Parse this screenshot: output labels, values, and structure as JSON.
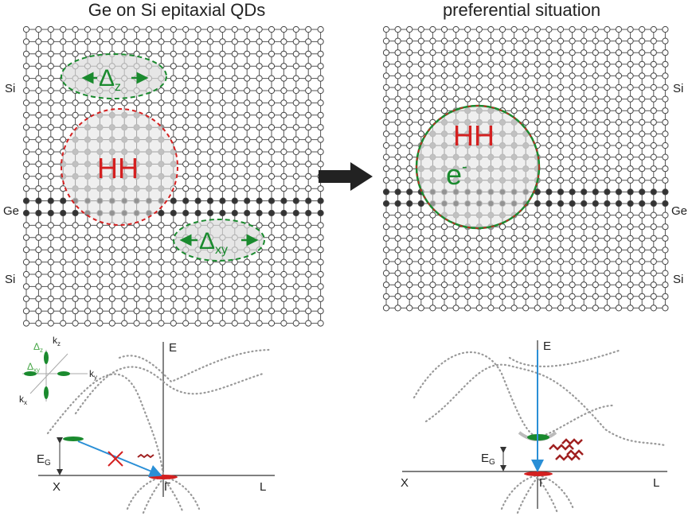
{
  "left": {
    "title": "Ge on Si epitaxial QDs",
    "layers": [
      "Si",
      "Ge",
      "Si"
    ],
    "delta_z": {
      "main": "Δ",
      "sub": "z"
    },
    "hh": "HH",
    "delta_xy": {
      "main": "Δ",
      "sub": "xy"
    },
    "band": {
      "e_axis": "E",
      "kz": {
        "main": "k",
        "sub": "z"
      },
      "inset_delta_z": {
        "main": "Δ",
        "sub": "z"
      },
      "inset_delta_xy": {
        "main": "Δ",
        "sub": "xy"
      },
      "ky": {
        "main": "k",
        "sub": "y"
      },
      "kx": {
        "main": "k",
        "sub": "x"
      },
      "eg": {
        "main": "E",
        "sub": "G"
      },
      "x": "X",
      "gamma": "Γ",
      "l": "L"
    }
  },
  "right": {
    "title": "preferential situation",
    "layers": [
      "Si",
      "Ge",
      "Si"
    ],
    "hh": "HH",
    "electron": {
      "main": "e",
      "sup": "-"
    },
    "band": {
      "e_axis": "E",
      "eg": {
        "main": "E",
        "sub": "G"
      },
      "x": "X",
      "gamma": "Γ",
      "l": "L"
    }
  }
}
